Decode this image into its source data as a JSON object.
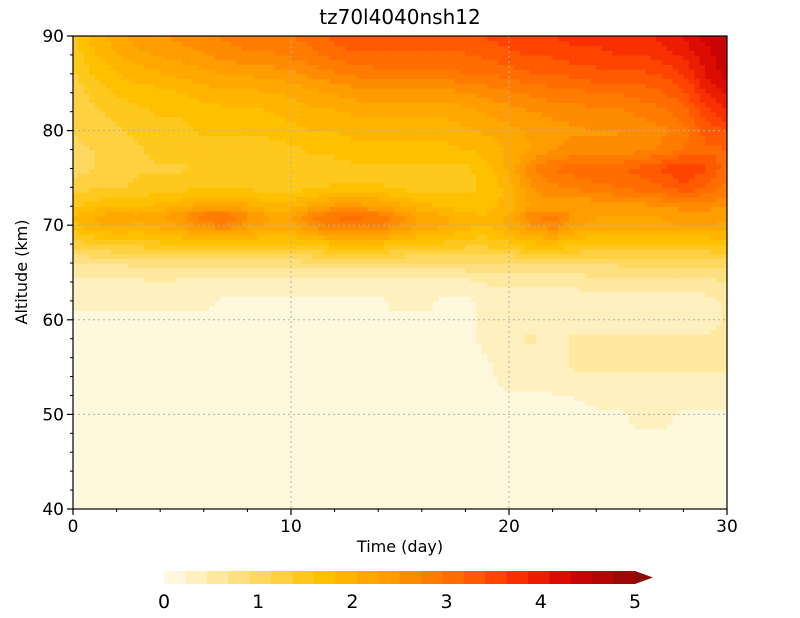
{
  "chart_data": {
    "type": "heatmap",
    "title": "tz70l4040nsh12",
    "xlabel": "Time (day)",
    "ylabel": "Altitude (km)",
    "xlim": [
      0,
      30
    ],
    "ylim": [
      40,
      90
    ],
    "x_ticks": [
      "0",
      "10",
      "20",
      "30"
    ],
    "y_ticks": [
      "40",
      "50",
      "60",
      "70",
      "80",
      "90"
    ],
    "grid": "dotted",
    "colorbar": {
      "placement": "bottom",
      "range": [
        0,
        5
      ],
      "ticks": [
        "0",
        "1",
        "2",
        "3",
        "4",
        "5"
      ],
      "extend": "max",
      "colors": [
        "#fff8dc",
        "#fff0c0",
        "#ffe8a0",
        "#ffe080",
        "#ffd860",
        "#ffd040",
        "#ffc81c",
        "#ffc000",
        "#ffb400",
        "#ffa800",
        "#ff9c00",
        "#ff8c00",
        "#ff7c00",
        "#ff6c00",
        "#ff5a00",
        "#ff4400",
        "#f83000",
        "#ec1c00",
        "#dc0c00",
        "#c80404",
        "#b40606",
        "#a00808"
      ]
    },
    "x": [
      0,
      1,
      2,
      3,
      4,
      5,
      6,
      7,
      8,
      9,
      10,
      11,
      12,
      13,
      14,
      15,
      16,
      17,
      18,
      19,
      20,
      21,
      22,
      23,
      24,
      25,
      26,
      27,
      28,
      29,
      30
    ],
    "y": [
      40,
      45,
      50,
      55,
      58,
      60,
      62,
      64,
      66,
      68,
      70,
      71,
      72,
      74,
      76,
      78,
      80,
      82,
      84,
      86,
      88,
      90
    ],
    "z": [
      [
        0.1,
        0.1,
        0.1,
        0.1,
        0.1,
        0.1,
        0.1,
        0.1,
        0.1,
        0.1,
        0.1,
        0.1,
        0.1,
        0.1,
        0.1,
        0.1,
        0.1,
        0.1,
        0.1,
        0.1,
        0.1,
        0.1,
        0.1,
        0.1,
        0.1,
        0.1,
        0.1,
        0.1,
        0.1,
        0.1,
        0.1
      ],
      [
        0.1,
        0.1,
        0.1,
        0.1,
        0.1,
        0.1,
        0.1,
        0.1,
        0.1,
        0.1,
        0.1,
        0.1,
        0.1,
        0.1,
        0.1,
        0.1,
        0.1,
        0.1,
        0.1,
        0.1,
        0.1,
        0.1,
        0.1,
        0.1,
        0.1,
        0.1,
        0.1,
        0.1,
        0.1,
        0.1,
        0.1
      ],
      [
        0.1,
        0.1,
        0.1,
        0.1,
        0.1,
        0.1,
        0.1,
        0.1,
        0.1,
        0.1,
        0.1,
        0.1,
        0.1,
        0.1,
        0.1,
        0.1,
        0.1,
        0.1,
        0.1,
        0.1,
        0.1,
        0.1,
        0.1,
        0.1,
        0.2,
        0.2,
        0.3,
        0.3,
        0.2,
        0.2,
        0.2
      ],
      [
        0.1,
        0.1,
        0.1,
        0.1,
        0.1,
        0.1,
        0.1,
        0.1,
        0.1,
        0.1,
        0.1,
        0.1,
        0.1,
        0.1,
        0.1,
        0.1,
        0.1,
        0.1,
        0.1,
        0.2,
        0.4,
        0.4,
        0.4,
        0.5,
        0.5,
        0.5,
        0.5,
        0.5,
        0.5,
        0.5,
        0.5
      ],
      [
        0.1,
        0.1,
        0.1,
        0.1,
        0.1,
        0.1,
        0.1,
        0.1,
        0.1,
        0.1,
        0.1,
        0.1,
        0.1,
        0.1,
        0.1,
        0.1,
        0.1,
        0.1,
        0.2,
        0.3,
        0.4,
        0.5,
        0.4,
        0.5,
        0.5,
        0.5,
        0.5,
        0.5,
        0.5,
        0.5,
        0.5
      ],
      [
        0.2,
        0.2,
        0.2,
        0.2,
        0.2,
        0.2,
        0.2,
        0.1,
        0.1,
        0.2,
        0.2,
        0.2,
        0.2,
        0.1,
        0.2,
        0.2,
        0.2,
        0.2,
        0.2,
        0.3,
        0.4,
        0.4,
        0.4,
        0.4,
        0.4,
        0.4,
        0.4,
        0.4,
        0.4,
        0.4,
        0.5
      ],
      [
        0.3,
        0.3,
        0.3,
        0.3,
        0.3,
        0.3,
        0.3,
        0.2,
        0.2,
        0.2,
        0.2,
        0.2,
        0.2,
        0.2,
        0.2,
        0.3,
        0.3,
        0.2,
        0.2,
        0.3,
        0.4,
        0.4,
        0.4,
        0.4,
        0.4,
        0.4,
        0.4,
        0.4,
        0.4,
        0.4,
        0.5
      ],
      [
        0.4,
        0.4,
        0.4,
        0.4,
        0.5,
        0.4,
        0.4,
        0.4,
        0.4,
        0.4,
        0.4,
        0.4,
        0.4,
        0.4,
        0.4,
        0.4,
        0.4,
        0.4,
        0.4,
        0.5,
        0.5,
        0.5,
        0.5,
        0.5,
        0.6,
        0.6,
        0.6,
        0.6,
        0.6,
        0.6,
        0.7
      ],
      [
        0.7,
        0.7,
        0.7,
        0.8,
        0.8,
        0.8,
        0.8,
        0.8,
        0.8,
        0.8,
        0.8,
        0.9,
        0.9,
        0.9,
        0.9,
        0.9,
        0.9,
        0.9,
        0.9,
        0.9,
        0.9,
        1.0,
        1.0,
        1.0,
        1.0,
        1.0,
        1.1,
        1.1,
        1.1,
        1.1,
        1.1
      ],
      [
        1.3,
        1.4,
        1.5,
        1.5,
        1.6,
        1.6,
        1.7,
        1.7,
        1.6,
        1.6,
        1.6,
        1.7,
        1.8,
        1.8,
        1.8,
        1.7,
        1.6,
        1.6,
        1.5,
        1.5,
        1.6,
        1.8,
        1.8,
        1.7,
        1.6,
        1.6,
        1.6,
        1.6,
        1.6,
        1.6,
        1.7
      ],
      [
        1.8,
        2.1,
        2.2,
        2.1,
        2.2,
        2.4,
        2.7,
        2.8,
        2.5,
        2.3,
        2.3,
        2.7,
        3.0,
        3.0,
        2.9,
        2.6,
        2.3,
        2.2,
        2.0,
        1.9,
        2.2,
        2.6,
        2.8,
        2.4,
        2.3,
        2.3,
        2.3,
        2.3,
        2.4,
        2.4,
        2.3
      ],
      [
        1.9,
        2.2,
        2.3,
        2.2,
        2.4,
        2.6,
        3.1,
        3.2,
        2.7,
        2.4,
        2.4,
        2.9,
        3.1,
        3.2,
        3.0,
        2.7,
        2.3,
        2.2,
        2.0,
        1.9,
        2.2,
        2.8,
        3.0,
        2.6,
        2.4,
        2.4,
        2.4,
        2.4,
        2.5,
        2.5,
        2.4
      ],
      [
        1.6,
        1.8,
        1.9,
        1.9,
        2.0,
        2.1,
        2.3,
        2.4,
        2.2,
        2.0,
        2.0,
        2.3,
        2.5,
        2.5,
        2.4,
        2.2,
        2.0,
        1.9,
        1.8,
        1.8,
        2.0,
        2.4,
        2.5,
        2.4,
        2.4,
        2.5,
        2.5,
        2.6,
        2.7,
        2.7,
        2.6
      ],
      [
        1.3,
        1.4,
        1.4,
        1.5,
        1.5,
        1.6,
        1.6,
        1.6,
        1.6,
        1.6,
        1.6,
        1.6,
        1.7,
        1.7,
        1.7,
        1.6,
        1.6,
        1.6,
        1.6,
        1.7,
        2.0,
        2.6,
        2.8,
        2.9,
        3.0,
        3.1,
        3.2,
        3.3,
        3.5,
        3.3,
        3.0
      ],
      [
        1.1,
        1.2,
        1.3,
        1.4,
        1.4,
        1.4,
        1.5,
        1.5,
        1.5,
        1.5,
        1.5,
        1.6,
        1.6,
        1.6,
        1.6,
        1.6,
        1.6,
        1.6,
        1.6,
        1.8,
        2.2,
        2.8,
        3.1,
        3.2,
        3.3,
        3.3,
        3.4,
        3.6,
        3.8,
        3.6,
        3.2
      ],
      [
        1.1,
        1.2,
        1.3,
        1.4,
        1.5,
        1.5,
        1.6,
        1.6,
        1.6,
        1.6,
        1.6,
        1.7,
        1.7,
        1.8,
        1.8,
        1.8,
        1.8,
        1.8,
        1.9,
        2.0,
        2.2,
        2.4,
        2.6,
        2.7,
        2.7,
        2.7,
        2.8,
        2.9,
        3.1,
        3.3,
        3.3
      ],
      [
        1.2,
        1.3,
        1.4,
        1.5,
        1.6,
        1.6,
        1.7,
        1.7,
        1.7,
        1.7,
        1.8,
        1.9,
        1.9,
        2.0,
        2.0,
        2.0,
        2.0,
        2.0,
        2.1,
        2.2,
        2.3,
        2.4,
        2.5,
        2.6,
        2.6,
        2.6,
        2.7,
        2.8,
        3.0,
        3.4,
        3.6
      ],
      [
        1.2,
        1.4,
        1.5,
        1.6,
        1.7,
        1.7,
        1.8,
        1.8,
        1.8,
        1.9,
        2.0,
        2.1,
        2.1,
        2.2,
        2.2,
        2.2,
        2.2,
        2.2,
        2.3,
        2.4,
        2.5,
        2.6,
        2.7,
        2.7,
        2.8,
        2.8,
        2.9,
        3.0,
        3.2,
        3.7,
        4.0
      ],
      [
        1.3,
        1.5,
        1.7,
        1.8,
        1.8,
        1.9,
        2.0,
        2.1,
        2.1,
        2.1,
        2.2,
        2.3,
        2.4,
        2.5,
        2.5,
        2.5,
        2.5,
        2.5,
        2.6,
        2.7,
        2.8,
        2.9,
        3.0,
        3.0,
        3.1,
        3.1,
        3.2,
        3.3,
        3.5,
        4.0,
        4.3
      ],
      [
        1.4,
        1.7,
        1.9,
        2.0,
        2.1,
        2.2,
        2.3,
        2.4,
        2.4,
        2.5,
        2.5,
        2.7,
        2.8,
        2.9,
        3.0,
        3.0,
        3.0,
        3.0,
        3.1,
        3.1,
        3.2,
        3.3,
        3.3,
        3.4,
        3.5,
        3.5,
        3.5,
        3.6,
        3.8,
        4.3,
        4.6
      ],
      [
        1.5,
        1.9,
        2.1,
        2.3,
        2.4,
        2.5,
        2.6,
        2.7,
        2.8,
        2.8,
        2.9,
        3.0,
        3.2,
        3.3,
        3.3,
        3.3,
        3.3,
        3.3,
        3.3,
        3.4,
        3.5,
        3.6,
        3.6,
        3.7,
        3.7,
        3.8,
        3.8,
        3.9,
        4.1,
        4.4,
        4.7
      ],
      [
        1.6,
        2.0,
        2.3,
        2.5,
        2.6,
        2.7,
        2.8,
        2.9,
        3.0,
        3.0,
        3.1,
        3.2,
        3.4,
        3.5,
        3.5,
        3.5,
        3.5,
        3.5,
        3.5,
        3.6,
        3.7,
        3.8,
        3.8,
        3.9,
        3.9,
        4.0,
        4.0,
        4.1,
        4.3,
        4.6,
        4.8
      ]
    ]
  }
}
